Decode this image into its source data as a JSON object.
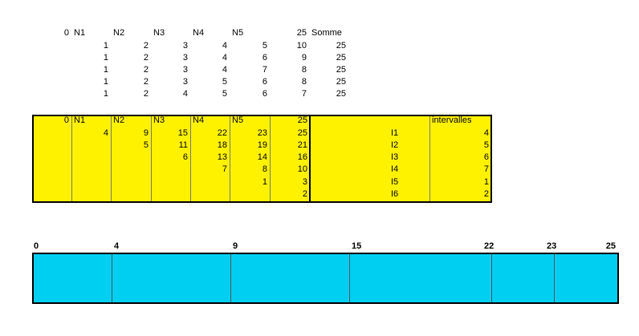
{
  "top": {
    "header": [
      0,
      "N1",
      "N2",
      "N3",
      "N4",
      "N5",
      25,
      "Somme"
    ],
    "rows": [
      [
        null,
        1,
        2,
        3,
        4,
        5,
        10,
        25
      ],
      [
        null,
        1,
        2,
        3,
        4,
        6,
        9,
        25
      ],
      [
        null,
        1,
        2,
        3,
        4,
        7,
        8,
        25
      ],
      [
        null,
        1,
        2,
        3,
        5,
        6,
        8,
        25
      ],
      [
        null,
        1,
        2,
        4,
        5,
        6,
        7,
        25
      ]
    ]
  },
  "yellow": {
    "header": [
      0,
      "N1",
      "N2",
      "N3",
      "N4",
      "N5",
      25,
      null,
      "intervalles"
    ],
    "rows": [
      [
        null,
        4,
        9,
        15,
        22,
        23,
        25,
        "I1",
        4
      ],
      [
        null,
        null,
        5,
        11,
        18,
        19,
        21,
        "I2",
        5
      ],
      [
        null,
        null,
        null,
        6,
        13,
        14,
        16,
        "I3",
        6
      ],
      [
        null,
        null,
        null,
        null,
        7,
        8,
        10,
        "I4",
        7
      ],
      [
        null,
        null,
        null,
        null,
        null,
        1,
        3,
        "I5",
        1
      ],
      [
        null,
        null,
        null,
        null,
        null,
        null,
        2,
        "I6",
        2
      ]
    ]
  },
  "bar": {
    "labels": [
      0,
      4,
      9,
      15,
      22,
      23,
      25
    ]
  }
}
